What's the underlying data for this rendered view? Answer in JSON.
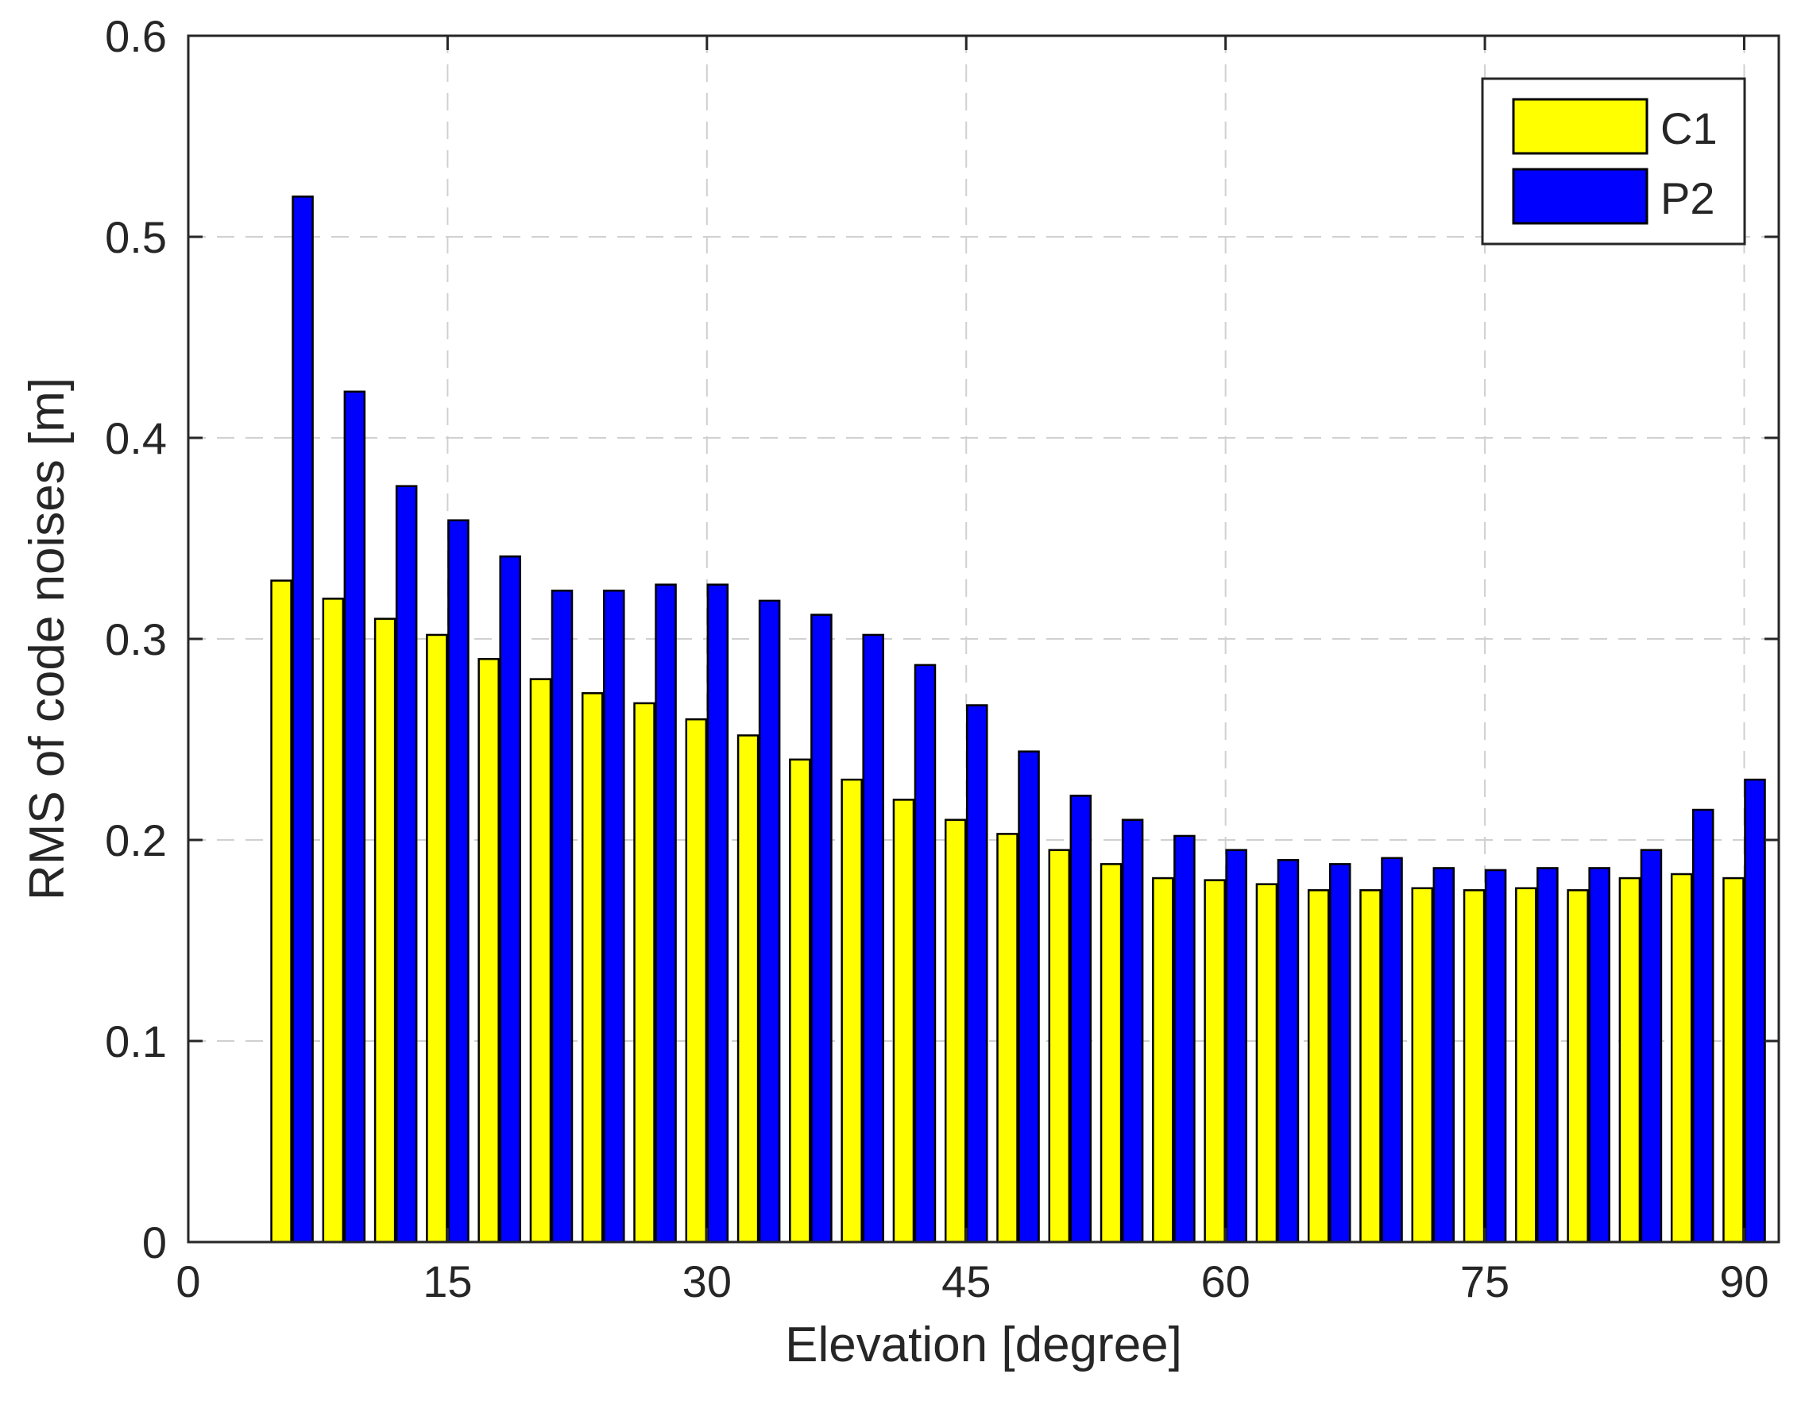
{
  "chart_data": {
    "type": "bar",
    "title": "",
    "xlabel": "Elevation [degree]",
    "ylabel": "RMS of code noises [m]",
    "xlim": [
      0,
      92
    ],
    "ylim": [
      0,
      0.6
    ],
    "xticks": [
      0,
      15,
      30,
      45,
      60,
      75,
      90
    ],
    "xtick_labels": [
      "0",
      "15",
      "30",
      "45",
      "60",
      "75",
      "90"
    ],
    "yticks": [
      0,
      0.1,
      0.2,
      0.3,
      0.4,
      0.5,
      0.6
    ],
    "ytick_labels": [
      "0",
      "0.1",
      "0.2",
      "0.3",
      "0.4",
      "0.5",
      "0.6"
    ],
    "grid": true,
    "legend_position": "top-right",
    "x": [
      6,
      9,
      12,
      15,
      18,
      21,
      24,
      27,
      30,
      33,
      36,
      39,
      42,
      45,
      48,
      51,
      54,
      57,
      60,
      63,
      66,
      69,
      72,
      75,
      78,
      81,
      84,
      87,
      90
    ],
    "series": [
      {
        "name": "C1",
        "color": "#ffff00",
        "values": [
          0.329,
          0.32,
          0.31,
          0.302,
          0.29,
          0.28,
          0.273,
          0.268,
          0.26,
          0.252,
          0.24,
          0.23,
          0.22,
          0.21,
          0.203,
          0.195,
          0.188,
          0.181,
          0.18,
          0.178,
          0.175,
          0.175,
          0.176,
          0.175,
          0.176,
          0.175,
          0.181,
          0.183,
          0.181
        ]
      },
      {
        "name": "P2",
        "color": "#0000ff",
        "values": [
          0.52,
          0.423,
          0.376,
          0.359,
          0.341,
          0.324,
          0.324,
          0.327,
          0.327,
          0.319,
          0.312,
          0.302,
          0.287,
          0.267,
          0.244,
          0.222,
          0.21,
          0.202,
          0.195,
          0.19,
          0.188,
          0.191,
          0.186,
          0.185,
          0.186,
          0.186,
          0.195,
          0.215,
          0.23
        ]
      }
    ]
  }
}
